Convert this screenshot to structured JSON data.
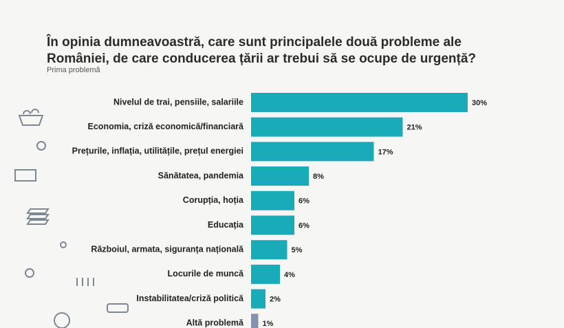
{
  "chart_data": {
    "type": "bar",
    "orientation": "horizontal",
    "title": "În opinia dumneavoastră, care sunt principalele două probleme ale României, de care conducerea țării ar trebui să se ocupe de urgență?",
    "subtitle": "Prima problemă",
    "categories": [
      "Nivelul de trai, pensiile, salariile",
      "Economia, criză economică/financiară",
      "Prețurile, inflația, utilitățile, prețul energiei",
      "Sănătatea, pandemia",
      "Corupția, hoția",
      "Educația",
      "Războiul, armata, siguranța națională",
      "Locurile de muncă",
      "Instabilitatea/criză politică",
      "Altă problemă"
    ],
    "values": [
      30,
      21,
      17,
      8,
      6,
      6,
      5,
      4,
      2,
      1
    ],
    "value_labels": [
      "30%",
      "21%",
      "17%",
      "8%",
      "6%",
      "6%",
      "5%",
      "4%",
      "2%",
      "1%"
    ],
    "colors": [
      "#1aabb8",
      "#1aabb8",
      "#1aabb8",
      "#1aabb8",
      "#1aabb8",
      "#1aabb8",
      "#1aabb8",
      "#1aabb8",
      "#1aabb8",
      "#8592ab"
    ]
  }
}
